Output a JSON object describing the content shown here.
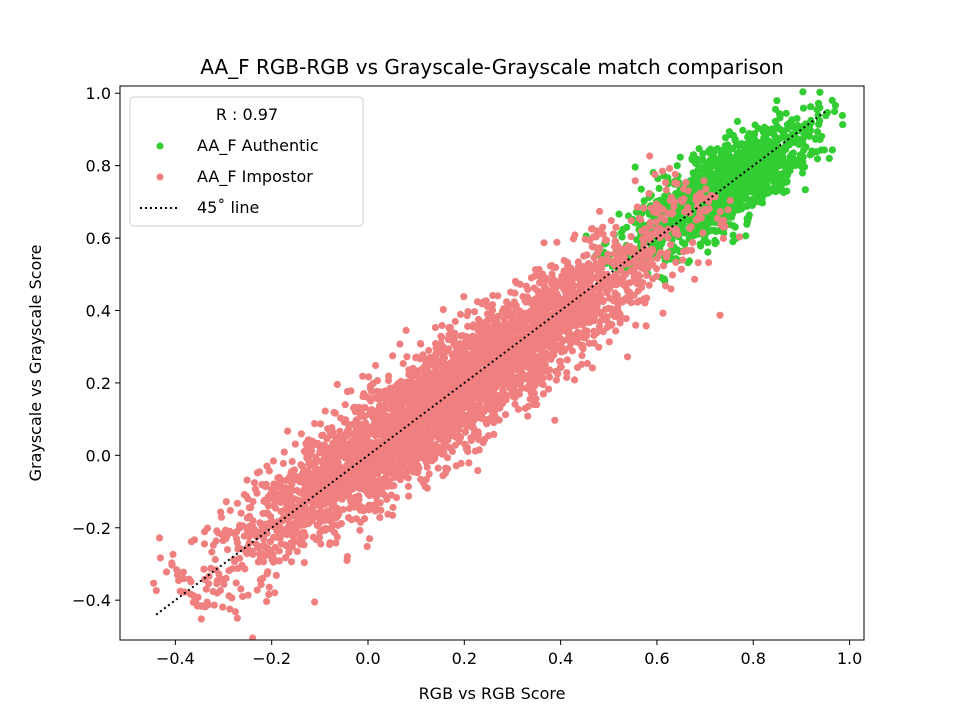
{
  "chart_data": {
    "type": "scatter",
    "title": "AA_F RGB-RGB vs Grayscale-Grayscale match comparison",
    "xlabel": "RGB vs RGB Score",
    "ylabel": "Grayscale vs Grayscale Score",
    "xlim": [
      -0.515,
      1.03
    ],
    "ylim": [
      -0.51,
      1.02
    ],
    "xticks": [
      -0.4,
      -0.2,
      0.0,
      0.2,
      0.4,
      0.6,
      0.8,
      1.0
    ],
    "xtick_labels": [
      "−0.4",
      "−0.2",
      "0.0",
      "0.2",
      "0.4",
      "0.6",
      "0.8",
      "1.0"
    ],
    "yticks": [
      -0.4,
      -0.2,
      0.0,
      0.2,
      0.4,
      0.6,
      0.8,
      1.0
    ],
    "ytick_labels": [
      "−0.4",
      "−0.2",
      "0.0",
      "0.2",
      "0.4",
      "0.6",
      "0.8",
      "1.0"
    ],
    "grid": false,
    "legend": {
      "title": "R : 0.97",
      "placement": "upper-left",
      "entries": [
        "AA_F Authentic",
        "AA_F Impostor",
        "45˚ line"
      ]
    },
    "series": [
      {
        "name": "AA_F Authentic",
        "kind": "scatter",
        "color": "#32cd32",
        "x_range": [
          0.52,
          0.95
        ],
        "y_range": [
          0.52,
          0.95
        ],
        "spread": 0.03
      },
      {
        "name": "AA_F Impostor",
        "kind": "scatter",
        "color": "#f08080",
        "x_range": [
          -0.37,
          0.7
        ],
        "y_range": [
          -0.38,
          0.7
        ],
        "spread": 0.04
      },
      {
        "name": "45˚ line",
        "kind": "line",
        "style": "dotted",
        "color": "#000000",
        "x": [
          -0.44,
          0.95
        ],
        "y": [
          -0.44,
          0.95
        ]
      }
    ]
  }
}
